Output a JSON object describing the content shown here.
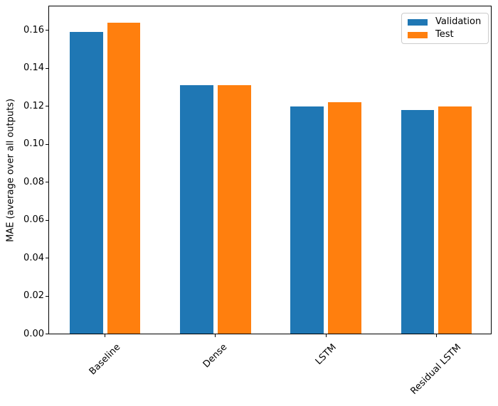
{
  "chart_data": {
    "type": "bar",
    "title": "",
    "categories": [
      "Baseline",
      "Dense",
      "LSTM",
      "Residual LSTM"
    ],
    "series": [
      {
        "name": "Validation",
        "color": "#1f77b4",
        "values": [
          0.159,
          0.131,
          0.12,
          0.118
        ]
      },
      {
        "name": "Test",
        "color": "#ff7f0e",
        "values": [
          0.164,
          0.131,
          0.122,
          0.12
        ]
      }
    ],
    "xlabel": "",
    "ylabel": "MAE (average over all outputs)",
    "ylim": [
      0,
      0.1728
    ],
    "yticks": [
      0.0,
      0.02,
      0.04,
      0.06,
      0.08,
      0.1,
      0.12,
      0.14,
      0.16
    ],
    "ytick_labels": [
      "0.00",
      "0.02",
      "0.04",
      "0.06",
      "0.08",
      "0.10",
      "0.12",
      "0.14",
      "0.16"
    ],
    "xtick_rotation": 45,
    "grid": false,
    "legend": {
      "position": "upper right"
    },
    "colors": {
      "axis": "#000000",
      "legend_border": "#cccccc",
      "background": "#ffffff"
    }
  }
}
